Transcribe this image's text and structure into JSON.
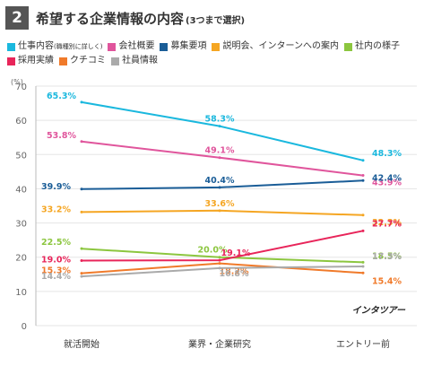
{
  "header": {
    "number": "2",
    "title": "希望する企業情報の内容",
    "subtitle": "(3つまで選択)"
  },
  "chart_data": {
    "type": "line",
    "categories": [
      "就活開始",
      "業界・企業研究",
      "エントリー前"
    ],
    "y_unit": "(%)",
    "ylim": [
      0,
      70
    ],
    "yticks": [
      0,
      10,
      20,
      30,
      40,
      50,
      60,
      70
    ],
    "grid": true,
    "brand": "インタツアー",
    "series": [
      {
        "name": "仕事内容",
        "note": "(職種別に詳しく)",
        "color": "#1ab8de",
        "values": [
          65.3,
          58.3,
          48.3
        ],
        "labels": [
          "65.3%",
          "58.3%",
          "48.3%"
        ]
      },
      {
        "name": "会社概要",
        "color": "#e0559c",
        "values": [
          53.8,
          49.1,
          43.9
        ],
        "labels": [
          "53.8%",
          "49.1%",
          "43.9%"
        ]
      },
      {
        "name": "募集要項",
        "color": "#1a5d97",
        "values": [
          39.9,
          40.4,
          42.4
        ],
        "labels": [
          "39.9%",
          "40.4%",
          "42.4%"
        ]
      },
      {
        "name": "説明会、インターンへの案内",
        "color": "#f5a623",
        "values": [
          33.2,
          33.6,
          32.3
        ],
        "labels": [
          "33.2%",
          "33.6%",
          "32.3%"
        ]
      },
      {
        "name": "社内の様子",
        "color": "#8cc63f",
        "values": [
          22.5,
          20.0,
          18.5
        ],
        "labels": [
          "22.5%",
          "20.0%",
          "18.5%"
        ]
      },
      {
        "name": "採用実績",
        "color": "#e8255a",
        "values": [
          19.0,
          19.1,
          27.7
        ],
        "labels": [
          "19.0%",
          "19.1%",
          "27.7%"
        ]
      },
      {
        "name": "クチコミ",
        "color": "#f07a2a",
        "values": [
          15.3,
          18.2,
          15.4
        ],
        "labels": [
          "15.3%",
          "18.2%",
          "15.4%"
        ]
      },
      {
        "name": "社員情報",
        "color": "#aaaaaa",
        "values": [
          14.4,
          16.8,
          17.3
        ],
        "labels": [
          "14.4%",
          "16.8%",
          "17.3%"
        ]
      }
    ]
  }
}
